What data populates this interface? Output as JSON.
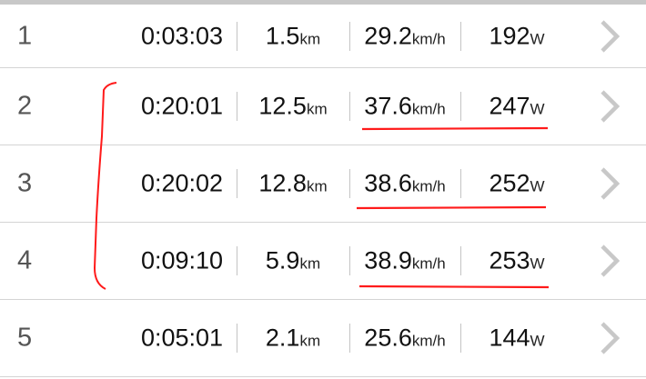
{
  "laps": [
    {
      "lap": "1",
      "time": "0:03:03",
      "distance": "1.5",
      "distance_unit": "km",
      "speed": "29.2",
      "speed_unit": "km/h",
      "power": "192",
      "power_unit": "W"
    },
    {
      "lap": "2",
      "time": "0:20:01",
      "distance": "12.5",
      "distance_unit": "km",
      "speed": "37.6",
      "speed_unit": "km/h",
      "power": "247",
      "power_unit": "W"
    },
    {
      "lap": "3",
      "time": "0:20:02",
      "distance": "12.8",
      "distance_unit": "km",
      "speed": "38.6",
      "speed_unit": "km/h",
      "power": "252",
      "power_unit": "W"
    },
    {
      "lap": "4",
      "time": "0:09:10",
      "distance": "5.9",
      "distance_unit": "km",
      "speed": "38.9",
      "speed_unit": "km/h",
      "power": "253",
      "power_unit": "W"
    },
    {
      "lap": "5",
      "time": "0:05:01",
      "distance": "2.1",
      "distance_unit": "km",
      "speed": "25.6",
      "speed_unit": "km/h",
      "power": "144",
      "power_unit": "W"
    }
  ],
  "icons": {
    "row_action": "chevron-right-icon"
  },
  "colors": {
    "annotation": "#ff1a1a",
    "chevron": "#c8c8c8",
    "divider": "#d4d4d4"
  }
}
